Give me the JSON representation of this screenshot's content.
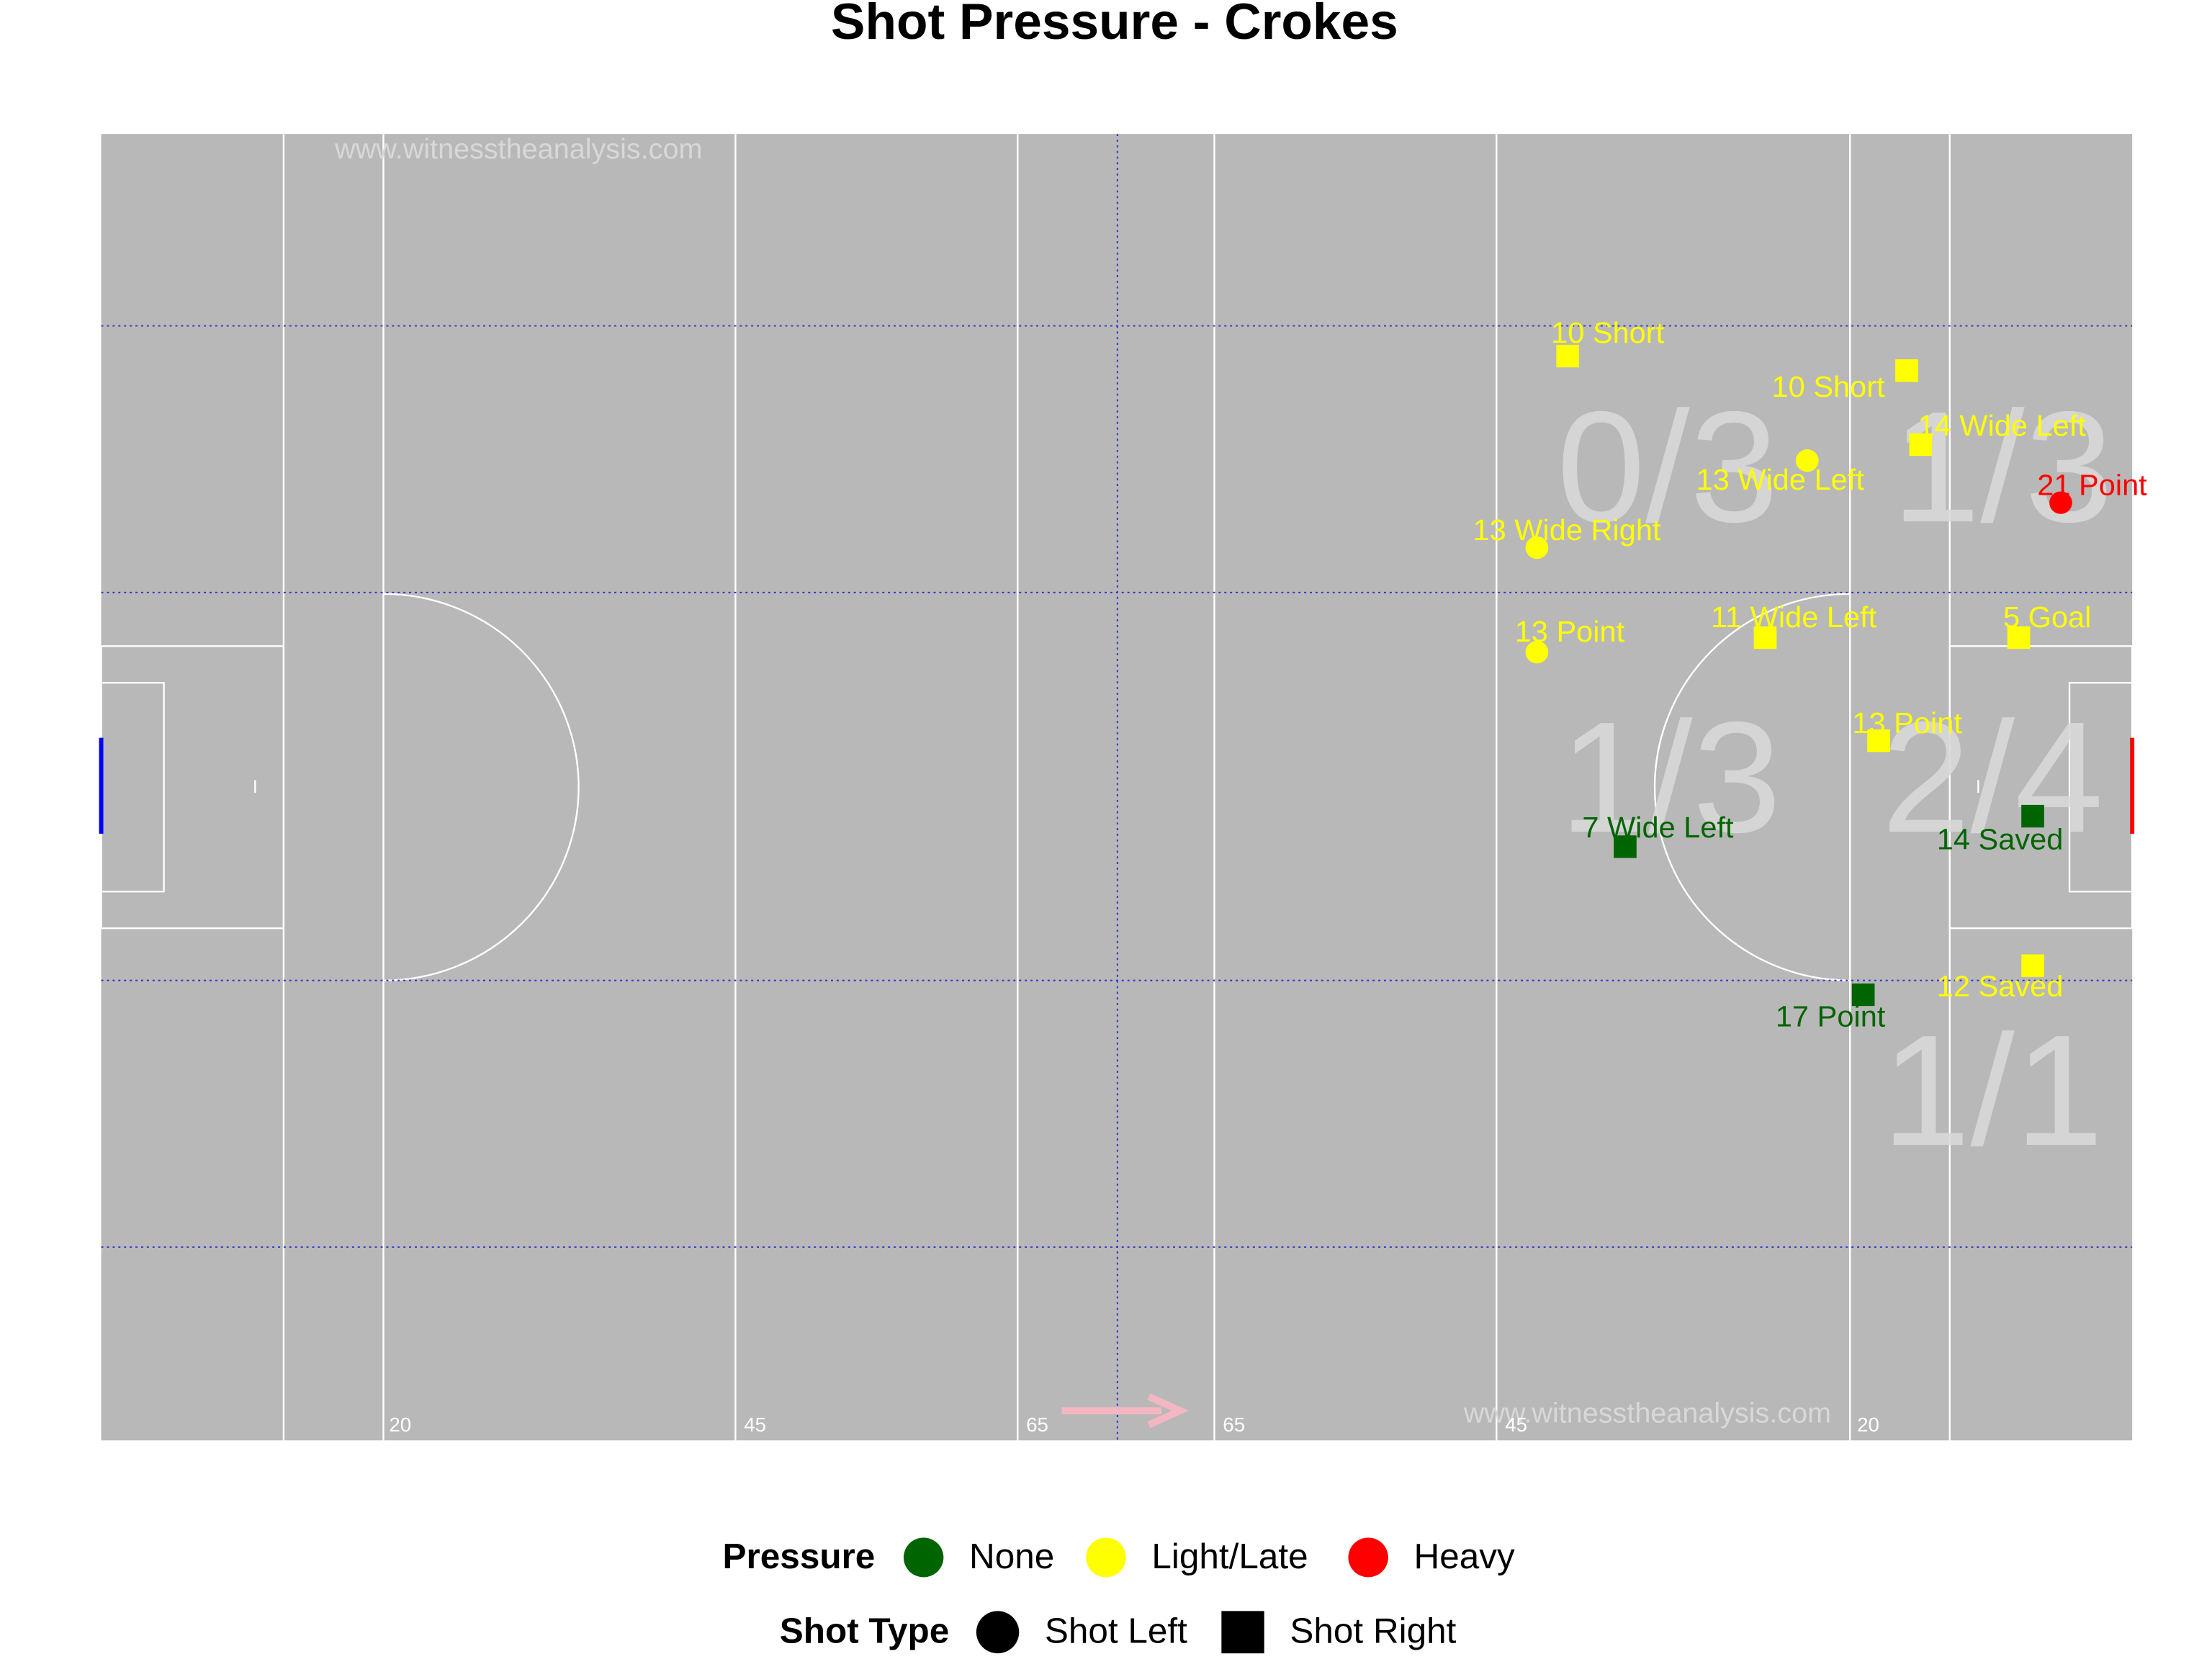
{
  "chart_data": {
    "type": "scatter",
    "title": "Shot Pressure - Crokes",
    "watermark": "www.witnesstheanalysis.com",
    "xlim": [
      0,
      145
    ],
    "ylim": [
      0,
      90
    ],
    "pitch_markings": [
      "20",
      "45",
      "65",
      "65",
      "45",
      "20"
    ],
    "zones": [
      "0/3",
      "1/3",
      "1/3",
      "2/4",
      "1/1"
    ],
    "legend": {
      "pressure_title": "Pressure",
      "pressure": [
        {
          "name": "None",
          "color": "#006400"
        },
        {
          "name": "Light/Late",
          "color": "#ffff00"
        },
        {
          "name": "Heavy",
          "color": "#ff0000"
        }
      ],
      "shot_title": "Shot Type",
      "shot": [
        {
          "name": "Shot Left",
          "shape": "circle"
        },
        {
          "name": "Shot Right",
          "shape": "square"
        }
      ]
    },
    "points": [
      {
        "label": "10 Short",
        "x": 104.7,
        "y": 15.3,
        "pressure": "Light/Late",
        "shot": "Shot Right"
      },
      {
        "label": "10 Short",
        "x": 128.9,
        "y": 16.3,
        "pressure": "Light/Late",
        "shot": "Shot Right"
      },
      {
        "label": "14 Wide Left",
        "x": 129.9,
        "y": 21.4,
        "pressure": "Light/Late",
        "shot": "Shot Right"
      },
      {
        "label": "13 Wide Left",
        "x": 121.8,
        "y": 22.5,
        "pressure": "Light/Late",
        "shot": "Shot Left"
      },
      {
        "label": "21 Point",
        "x": 139.9,
        "y": 25.4,
        "pressure": "Heavy",
        "shot": "Shot Left"
      },
      {
        "label": "13 Wide Right",
        "x": 102.5,
        "y": 28.5,
        "pressure": "Light/Late",
        "shot": "Shot Left"
      },
      {
        "label": "13 Point",
        "x": 102.5,
        "y": 35.7,
        "pressure": "Light/Late",
        "shot": "Shot Left"
      },
      {
        "label": "11 Wide Left",
        "x": 118.8,
        "y": 34.7,
        "pressure": "Light/Late",
        "shot": "Shot Right"
      },
      {
        "label": "5 Goal",
        "x": 136.9,
        "y": 34.7,
        "pressure": "Light/Late",
        "shot": "Shot Right"
      },
      {
        "label": "13 Point",
        "x": 126.9,
        "y": 41.8,
        "pressure": "Light/Late",
        "shot": "Shot Right"
      },
      {
        "label": "14 Saved",
        "x": 137.9,
        "y": 47.0,
        "pressure": "None",
        "shot": "Shot Right"
      },
      {
        "label": "7 Wide Left",
        "x": 108.8,
        "y": 49.1,
        "pressure": "None",
        "shot": "Shot Right"
      },
      {
        "label": "12 Saved",
        "x": 137.9,
        "y": 57.3,
        "pressure": "Light/Late",
        "shot": "Shot Right"
      },
      {
        "label": "17 Point",
        "x": 125.8,
        "y": 59.3,
        "pressure": "None",
        "shot": "Shot Right"
      }
    ]
  }
}
